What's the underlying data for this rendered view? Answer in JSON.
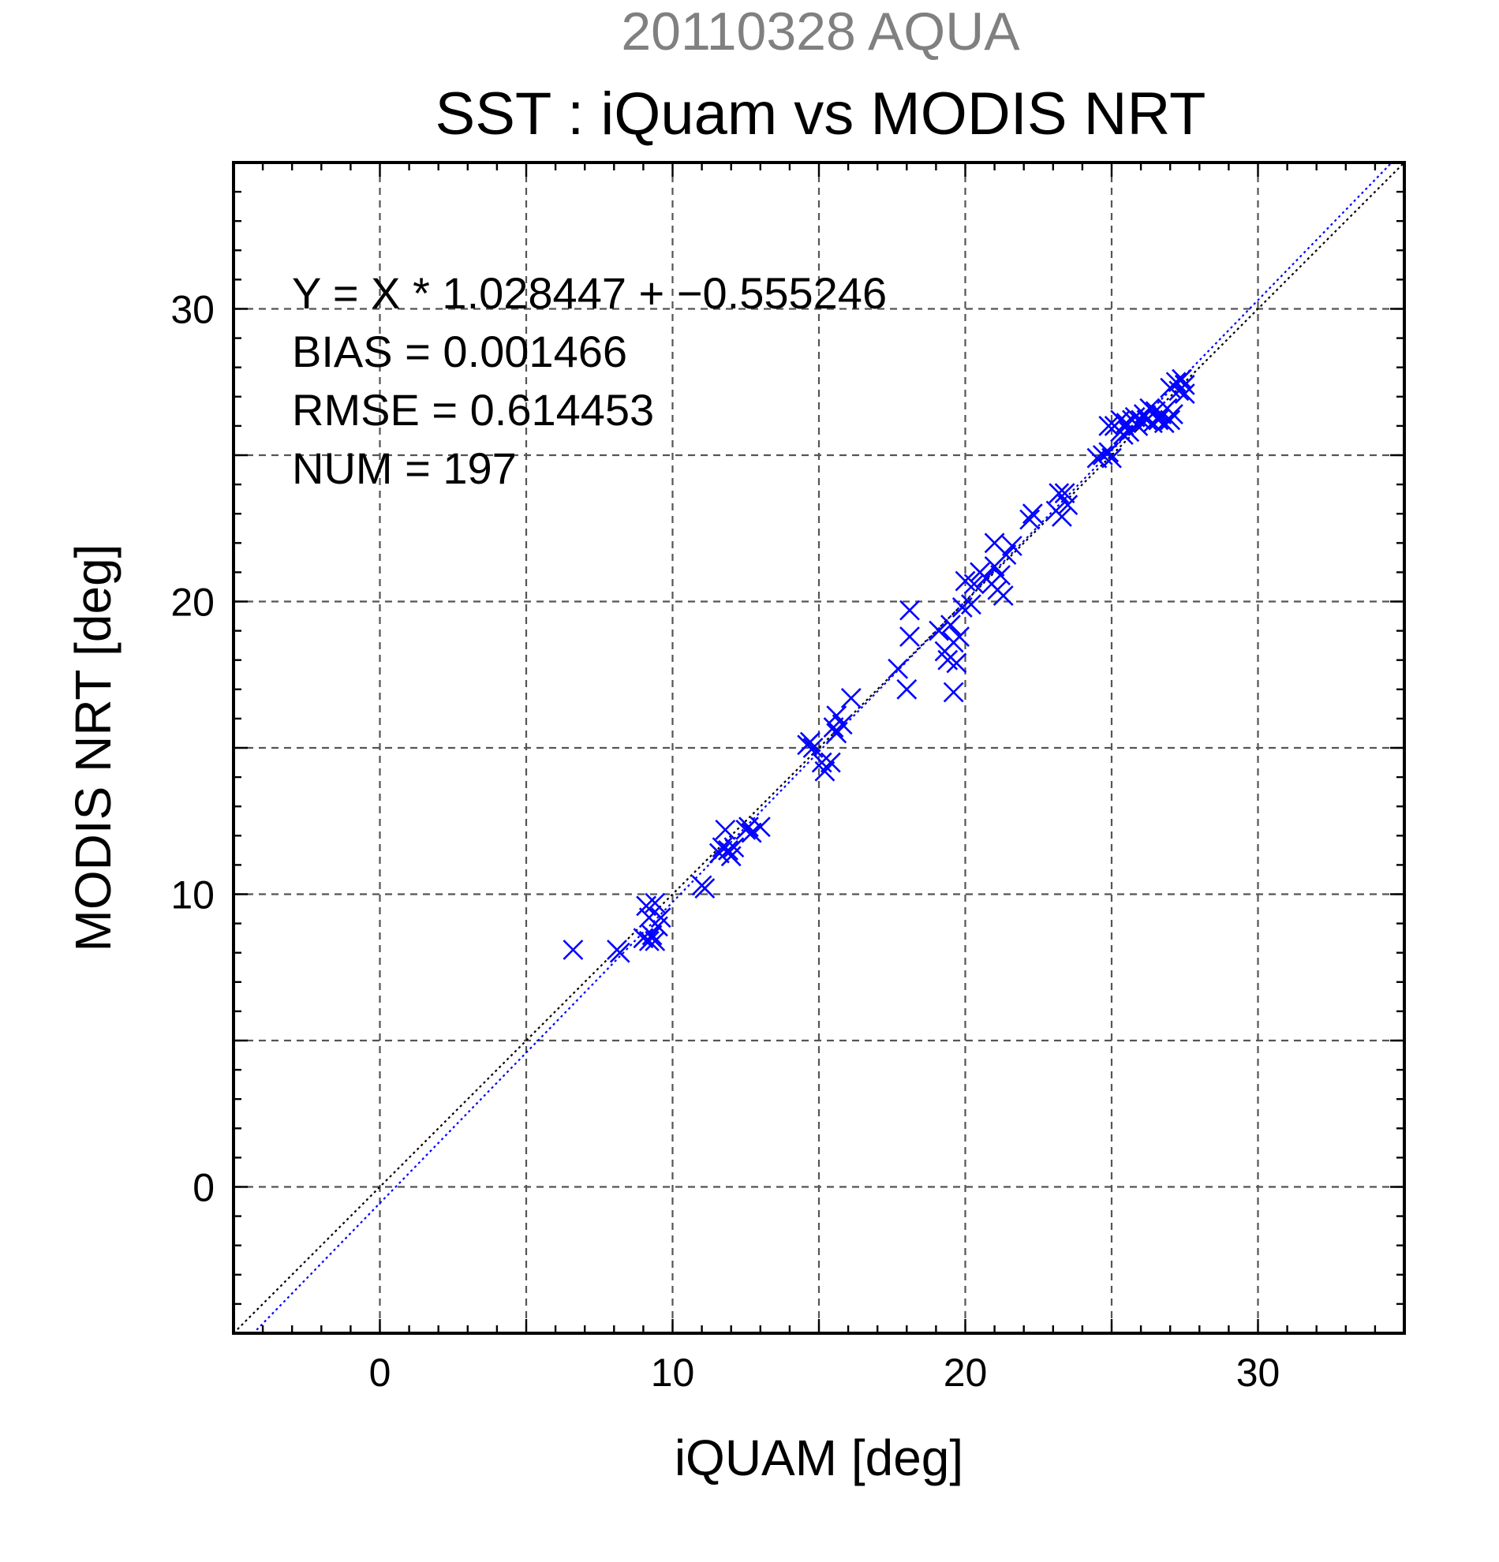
{
  "figure": {
    "supertitle": "20110328 AQUA",
    "title": "SST : iQuam vs MODIS NRT"
  },
  "stats": {
    "equation": "Y = X * 1.028447 + −0.555246",
    "bias": "BIAS = 0.001466",
    "rmse": "RMSE = 0.614453",
    "num": "NUM = 197"
  },
  "chart_data": {
    "type": "scatter",
    "title": "SST : iQuam vs MODIS NRT",
    "xlabel": "iQUAM [deg]",
    "ylabel": "MODIS NRT [deg]",
    "xlim": [
      -5,
      35
    ],
    "ylim": [
      -5,
      35
    ],
    "xticks": [
      0,
      10,
      20,
      30
    ],
    "yticks": [
      0,
      10,
      20,
      30
    ],
    "x_tick_labels": [
      "0",
      "10",
      "20",
      "30"
    ],
    "y_tick_labels": [
      "0",
      "10",
      "20",
      "30"
    ],
    "minor_tick_step": 1,
    "grid_step": 5,
    "grid": true,
    "marker": "x",
    "marker_color": "#0000ff",
    "lines": [
      {
        "slope": 1.0,
        "intercept": 0.0,
        "color": "#000000",
        "style": "dotted"
      },
      {
        "slope": 1.028447,
        "intercept": -0.555246,
        "color": "#0000ff",
        "style": "dotted"
      }
    ],
    "points": [
      [
        6.6,
        8.1
      ],
      [
        8.1,
        8.1
      ],
      [
        8.2,
        8.0
      ],
      [
        9.0,
        8.5
      ],
      [
        9.1,
        9.6
      ],
      [
        9.2,
        9.2
      ],
      [
        9.2,
        8.4
      ],
      [
        9.3,
        8.6
      ],
      [
        9.4,
        8.4
      ],
      [
        9.4,
        9.7
      ],
      [
        9.5,
        8.9
      ],
      [
        9.6,
        9.2
      ],
      [
        11.0,
        10.3
      ],
      [
        11.1,
        10.2
      ],
      [
        11.6,
        11.4
      ],
      [
        11.7,
        11.6
      ],
      [
        11.8,
        12.2
      ],
      [
        11.9,
        11.5
      ],
      [
        12.0,
        11.3
      ],
      [
        12.1,
        11.6
      ],
      [
        12.5,
        12.2
      ],
      [
        12.6,
        12.3
      ],
      [
        12.7,
        12.1
      ],
      [
        13.0,
        12.3
      ],
      [
        14.6,
        15.1
      ],
      [
        14.7,
        15.2
      ],
      [
        14.8,
        15.0
      ],
      [
        15.1,
        14.5
      ],
      [
        15.2,
        14.2
      ],
      [
        15.4,
        14.5
      ],
      [
        15.5,
        15.7
      ],
      [
        15.6,
        15.5
      ],
      [
        15.6,
        16.1
      ],
      [
        15.8,
        15.8
      ],
      [
        16.1,
        16.7
      ],
      [
        17.7,
        17.7
      ],
      [
        18.0,
        17.0
      ],
      [
        18.1,
        18.8
      ],
      [
        18.1,
        19.7
      ],
      [
        19.1,
        19.0
      ],
      [
        19.3,
        18.3
      ],
      [
        19.4,
        18.0
      ],
      [
        19.5,
        19.2
      ],
      [
        19.6,
        18.6
      ],
      [
        19.6,
        16.9
      ],
      [
        19.7,
        17.9
      ],
      [
        19.8,
        18.8
      ],
      [
        19.9,
        19.8
      ],
      [
        20.0,
        20.7
      ],
      [
        20.2,
        19.9
      ],
      [
        20.3,
        20.6
      ],
      [
        20.5,
        21.0
      ],
      [
        20.7,
        20.8
      ],
      [
        20.9,
        20.6
      ],
      [
        21.0,
        21.2
      ],
      [
        21.1,
        20.4
      ],
      [
        21.2,
        20.9
      ],
      [
        21.3,
        20.2
      ],
      [
        21.0,
        22.0
      ],
      [
        21.4,
        21.6
      ],
      [
        21.6,
        21.9
      ],
      [
        22.2,
        22.8
      ],
      [
        22.3,
        23.0
      ],
      [
        23.1,
        23.1
      ],
      [
        23.2,
        23.7
      ],
      [
        23.3,
        22.9
      ],
      [
        23.4,
        23.7
      ],
      [
        23.5,
        23.3
      ],
      [
        24.5,
        24.9
      ],
      [
        24.7,
        25.0
      ],
      [
        24.9,
        25.1
      ],
      [
        25.0,
        24.9
      ],
      [
        24.9,
        26.0
      ],
      [
        25.1,
        26.0
      ],
      [
        25.3,
        25.8
      ],
      [
        25.3,
        26.2
      ],
      [
        25.4,
        25.7
      ],
      [
        25.5,
        26.1
      ],
      [
        25.6,
        25.8
      ],
      [
        25.7,
        26.2
      ],
      [
        25.8,
        26.3
      ],
      [
        25.9,
        26.0
      ],
      [
        26.0,
        26.2
      ],
      [
        26.1,
        26.4
      ],
      [
        26.2,
        26.2
      ],
      [
        26.3,
        26.6
      ],
      [
        26.4,
        26.1
      ],
      [
        26.5,
        26.5
      ],
      [
        26.6,
        26.2
      ],
      [
        26.7,
        26.4
      ],
      [
        26.8,
        26.1
      ],
      [
        26.9,
        26.6
      ],
      [
        27.0,
        26.2
      ],
      [
        27.1,
        26.4
      ],
      [
        27.0,
        27.3
      ],
      [
        27.2,
        27.5
      ],
      [
        27.3,
        27.2
      ],
      [
        27.4,
        27.6
      ],
      [
        27.5,
        27.1
      ],
      [
        27.5,
        27.4
      ]
    ]
  }
}
